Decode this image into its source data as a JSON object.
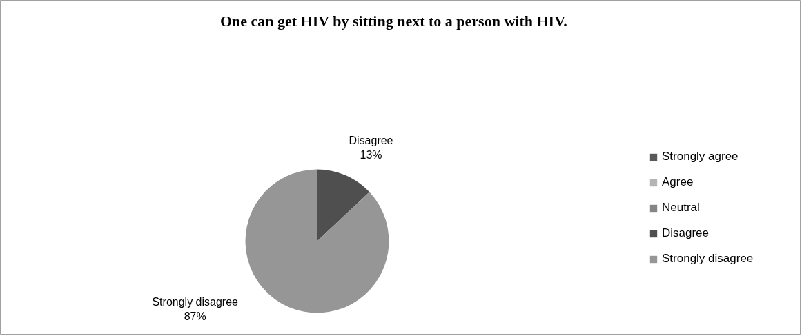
{
  "chart_data": {
    "type": "pie",
    "title": "One can get HIV by sitting next to a person with HIV.",
    "categories": [
      "Strongly agree",
      "Agree",
      "Neutral",
      "Disagree",
      "Strongly disagree"
    ],
    "values": [
      0,
      0,
      0,
      13,
      87
    ],
    "colors": [
      "#595959",
      "#b4b4b4",
      "#858585",
      "#4f4f4f",
      "#969696"
    ],
    "value_labels": [
      null,
      null,
      null,
      "13%",
      "87%"
    ],
    "legend": "right"
  }
}
